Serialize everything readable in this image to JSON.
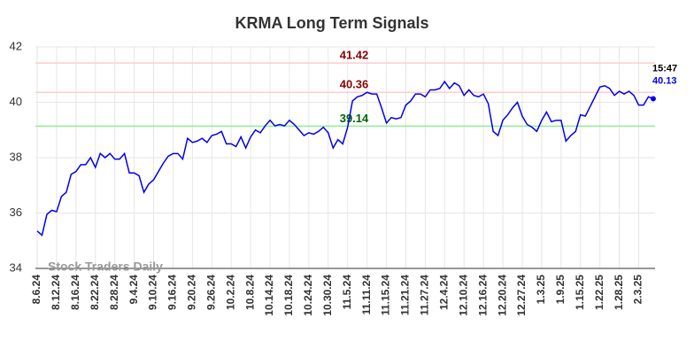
{
  "chart_data": {
    "type": "line",
    "title": "KRMA Long Term Signals",
    "watermark": "Stock Traders Daily",
    "categories": [
      "8.6.24",
      null,
      null,
      null,
      "8.12.24",
      null,
      null,
      null,
      "8.16.24",
      null,
      null,
      null,
      "8.22.24",
      null,
      null,
      null,
      "8.28.24",
      null,
      null,
      null,
      "9.4.24",
      null,
      null,
      null,
      "9.10.24",
      null,
      null,
      null,
      "9.16.24",
      null,
      null,
      null,
      "9.20.24",
      null,
      null,
      null,
      "9.26.24",
      null,
      null,
      null,
      "10.2.24",
      null,
      null,
      null,
      "10.8.24",
      null,
      null,
      null,
      "10.14.24",
      null,
      null,
      null,
      "10.18.24",
      null,
      null,
      null,
      "10.24.24",
      null,
      null,
      null,
      "10.30.24",
      null,
      null,
      null,
      "11.5.24",
      null,
      null,
      null,
      "11.11.24",
      null,
      null,
      null,
      "11.15.24",
      null,
      null,
      null,
      "11.21.24",
      null,
      null,
      null,
      "11.27.24",
      null,
      null,
      null,
      "12.4.24",
      null,
      null,
      null,
      "12.10.24",
      null,
      null,
      null,
      "12.16.24",
      null,
      null,
      null,
      "12.20.24",
      null,
      null,
      null,
      "12.27.24",
      null,
      null,
      null,
      "1.3.25",
      null,
      null,
      null,
      "1.9.25",
      null,
      null,
      null,
      "1.15.25",
      null,
      null,
      null,
      "1.22.25",
      null,
      null,
      null,
      "1.28.25",
      null,
      null,
      null,
      "2.3.25",
      null,
      null,
      null
    ],
    "series": [
      {
        "name": "KRMA",
        "color": "#0000ee",
        "values": [
          35.35,
          35.2,
          35.95,
          36.1,
          36.05,
          36.6,
          36.75,
          37.4,
          37.5,
          37.75,
          37.75,
          38.0,
          37.65,
          38.15,
          38.0,
          38.15,
          37.95,
          37.95,
          38.15,
          37.45,
          37.45,
          37.35,
          36.75,
          37.05,
          37.2,
          37.5,
          37.8,
          38.05,
          38.15,
          38.15,
          37.95,
          38.7,
          38.55,
          38.6,
          38.7,
          38.55,
          38.8,
          38.85,
          38.95,
          38.5,
          38.5,
          38.4,
          38.75,
          38.35,
          38.75,
          39.0,
          38.9,
          39.15,
          39.35,
          39.15,
          39.2,
          39.15,
          39.35,
          39.2,
          39.0,
          38.8,
          38.9,
          38.85,
          38.95,
          39.1,
          38.9,
          38.35,
          38.65,
          38.5,
          39.1,
          40.05,
          40.2,
          40.25,
          40.36,
          40.3,
          40.3,
          39.8,
          39.25,
          39.45,
          39.4,
          39.45,
          39.9,
          40.05,
          40.3,
          40.3,
          40.2,
          40.45,
          40.45,
          40.5,
          40.75,
          40.5,
          40.7,
          40.6,
          40.25,
          40.45,
          40.25,
          40.2,
          40.3,
          39.95,
          38.95,
          38.8,
          39.35,
          39.55,
          39.8,
          40.0,
          39.5,
          39.2,
          39.1,
          38.95,
          39.35,
          39.65,
          39.3,
          39.35,
          39.35,
          38.6,
          38.8,
          38.95,
          39.55,
          39.5,
          39.85,
          40.2,
          40.55,
          40.6,
          40.5,
          40.25,
          40.4,
          40.3,
          40.4,
          40.25,
          39.9,
          39.9,
          40.2,
          40.13
        ]
      }
    ],
    "last_time": "15:47",
    "hlines": [
      {
        "value": 41.42,
        "color": "#ffcccc",
        "label_color": "#8b0000"
      },
      {
        "value": 40.36,
        "color": "#ffcccc",
        "label_color": "#8b0000"
      },
      {
        "value": 39.14,
        "color": "#90ee90",
        "label_color": "#006400"
      }
    ],
    "ylim": [
      34,
      42
    ],
    "yticks": [
      34,
      36,
      38,
      40,
      42
    ],
    "grid": true
  }
}
